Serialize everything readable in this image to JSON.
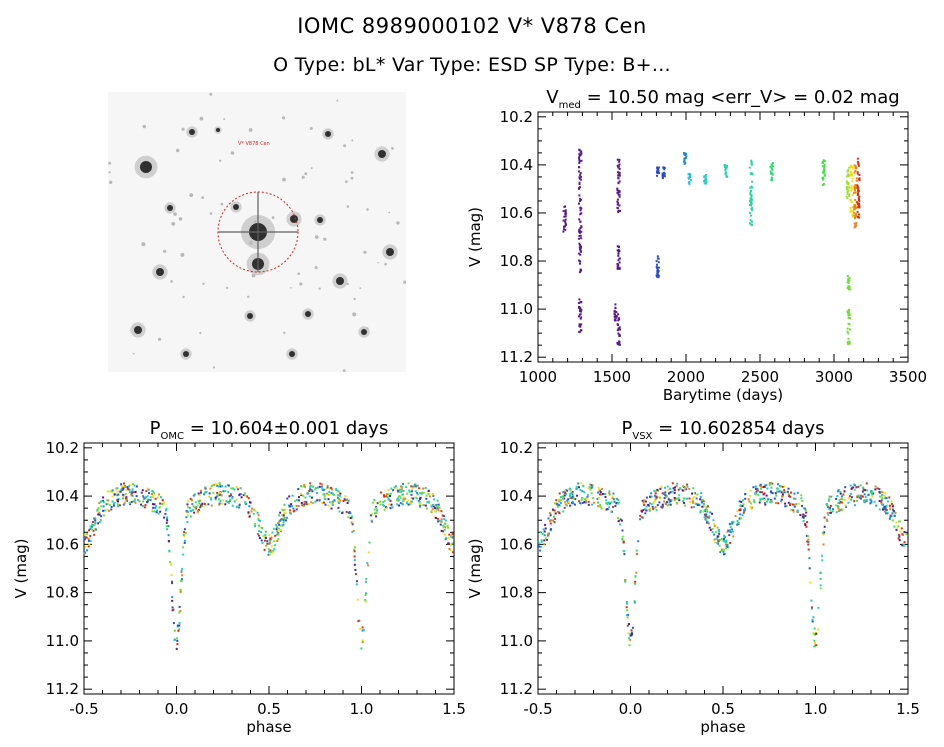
{
  "header": {
    "title": "IOMC 8989000102    V* V878 Cen",
    "subtitle": "O Type: bL*  Var Type: ESD  SP Type: B+..."
  },
  "image_panel": {
    "label_top": "V* V878 Cen"
  },
  "chart_data": [
    {
      "id": "lightcurve",
      "type": "scatter",
      "title": "V",
      "title_sub": "med",
      "title_rest": " = 10.50 mag <err_V> = 0.02 mag",
      "xlabel": "Barytime (days)",
      "ylabel": "V (mag)",
      "xlim": [
        1000,
        3500
      ],
      "ylim": [
        11.22,
        10.18
      ],
      "x_ticks": [
        1000,
        1500,
        2000,
        2500,
        3000,
        3500
      ],
      "y_ticks": [
        10.2,
        10.4,
        10.6,
        10.8,
        11.0,
        11.2
      ],
      "clusters": [
        {
          "x": 1180,
          "yrange": [
            10.57,
            10.68
          ],
          "color": "#5a1a8a"
        },
        {
          "x": 1285,
          "yrange": [
            10.33,
            10.85
          ],
          "color": "#5a1a8a"
        },
        {
          "x": 1285,
          "yrange": [
            10.95,
            11.1
          ],
          "color": "#5a1a8a"
        },
        {
          "x": 1525,
          "yrange": [
            10.98,
            11.05
          ],
          "color": "#5a1a8a"
        },
        {
          "x": 1545,
          "yrange": [
            10.36,
            10.62
          ],
          "color": "#5a1a8a"
        },
        {
          "x": 1545,
          "yrange": [
            11.02,
            11.15
          ],
          "color": "#5a1a8a"
        },
        {
          "x": 1545,
          "yrange": [
            10.73,
            10.84
          ],
          "color": "#5a1a8a"
        },
        {
          "x": 1810,
          "yrange": [
            10.78,
            10.87
          ],
          "color": "#2a4cc8"
        },
        {
          "x": 1810,
          "yrange": [
            10.41,
            10.45
          ],
          "color": "#2a4cc8"
        },
        {
          "x": 1850,
          "yrange": [
            10.41,
            10.46
          ],
          "color": "#2a4cc8"
        },
        {
          "x": 1995,
          "yrange": [
            10.35,
            10.4
          ],
          "color": "#1f8ad8"
        },
        {
          "x": 2025,
          "yrange": [
            10.43,
            10.48
          ],
          "color": "#22c0e0"
        },
        {
          "x": 2130,
          "yrange": [
            10.44,
            10.48
          ],
          "color": "#22d0c8"
        },
        {
          "x": 2270,
          "yrange": [
            10.4,
            10.45
          ],
          "color": "#26d6b0"
        },
        {
          "x": 2440,
          "yrange": [
            10.38,
            10.66
          ],
          "color": "#26d8a0"
        },
        {
          "x": 2580,
          "yrange": [
            10.39,
            10.47
          ],
          "color": "#2edc70"
        },
        {
          "x": 2930,
          "yrange": [
            10.38,
            10.49
          ],
          "color": "#44e044"
        },
        {
          "x": 3100,
          "yrange": [
            10.85,
            10.92
          ],
          "color": "#70e030"
        },
        {
          "x": 3100,
          "yrange": [
            11.0,
            11.15
          ],
          "color": "#70e030"
        },
        {
          "x": 3095,
          "yrange": [
            10.4,
            10.55
          ],
          "color": "#9ee030"
        },
        {
          "x": 3120,
          "yrange": [
            10.4,
            10.63
          ],
          "color": "#f0e010"
        },
        {
          "x": 3145,
          "yrange": [
            10.38,
            10.66
          ],
          "color": "#f08018"
        },
        {
          "x": 3165,
          "yrange": [
            10.37,
            10.62
          ],
          "color": "#d83010"
        }
      ]
    },
    {
      "id": "phase_omc",
      "type": "scatter",
      "title": "P",
      "title_sub": "OMC",
      "title_rest": " = 10.604±0.001 days",
      "xlabel": "phase",
      "ylabel": "V (mag)",
      "xlim": [
        -0.5,
        1.5
      ],
      "ylim": [
        11.22,
        10.18
      ],
      "x_ticks": [
        -0.5,
        0.0,
        0.5,
        1.0,
        1.5
      ],
      "y_ticks": [
        10.2,
        10.4,
        10.6,
        10.8,
        11.0,
        11.2
      ],
      "phase_curve": {
        "baseline": 10.45,
        "primary_min": {
          "phase": 0.0,
          "depth": 11.1
        },
        "secondary_min": {
          "phase": 0.5,
          "depth": 10.66
        }
      }
    },
    {
      "id": "phase_vsx",
      "type": "scatter",
      "title": "P",
      "title_sub": "VSX",
      "title_rest": " = 10.602854 days",
      "xlabel": "phase",
      "ylabel": "V (mag)",
      "xlim": [
        -0.5,
        1.5
      ],
      "ylim": [
        11.22,
        10.18
      ],
      "x_ticks": [
        -0.5,
        0.0,
        0.5,
        1.0,
        1.5
      ],
      "y_ticks": [
        10.2,
        10.4,
        10.6,
        10.8,
        11.0,
        11.2
      ],
      "phase_curve": {
        "baseline": 10.45,
        "primary_min": {
          "phase": 0.0,
          "depth": 11.1
        },
        "secondary_min": {
          "phase": 0.5,
          "depth": 10.66
        }
      }
    }
  ]
}
